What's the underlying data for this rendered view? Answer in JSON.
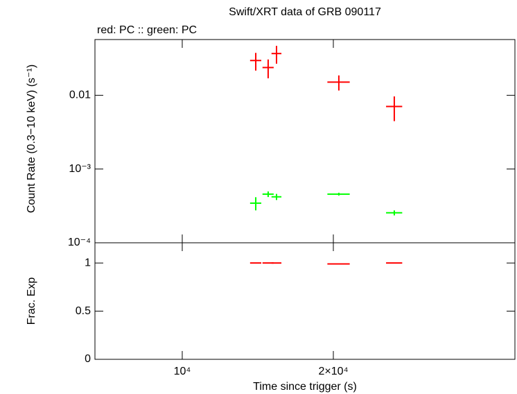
{
  "chart_data": [
    {
      "type": "scatter",
      "title": "Swift/XRT data of GRB 090117",
      "subtitle": "red: PC  :: green: PC",
      "ylabel": "Count Rate (0.3−10 keV) (s⁻¹)",
      "logx": true,
      "logy": true,
      "xlim": [
        6700,
        46000
      ],
      "ylim": [
        0.0001,
        0.057
      ],
      "yticks": [
        {
          "value": 0.0001,
          "label": "10⁻⁴"
        },
        {
          "value": 0.001,
          "label": "10⁻³"
        },
        0.01
      ],
      "series": [
        {
          "color": "#ff0000",
          "x": [
            14010,
            14830,
            15410,
            20510,
            26450
          ],
          "xerr": [
            360,
            380,
            350,
            1050,
            980
          ],
          "values": [
            0.0296,
            0.0238,
            0.0368,
            0.0151,
            0.00706
          ],
          "yerr": [
            0.008,
            0.0068,
            0.01,
            0.0035,
            0.0026
          ]
        },
        {
          "color": "#00ff00",
          "x": [
            14010,
            14830,
            15410,
            20510,
            26450
          ],
          "xerr": [
            360,
            380,
            350,
            1050,
            980
          ],
          "values": [
            0.000345,
            0.000457,
            0.00042,
            0.000457,
            0.000255
          ],
          "yerr": [
            7e-05,
            4e-05,
            4e-05,
            2e-05,
            2e-05
          ]
        }
      ]
    },
    {
      "type": "scatter",
      "xlabel": "Time since trigger (s)",
      "ylabel": "Frac. Exp",
      "logx": true,
      "logy": false,
      "xlim": [
        6700,
        46000
      ],
      "ylim": [
        0,
        1.21
      ],
      "xticks": [
        {
          "value": 10000,
          "label": "10⁴"
        },
        {
          "value": 20000,
          "label": "2×10⁴"
        }
      ],
      "yticks": [
        0,
        0.5,
        1
      ],
      "series": [
        {
          "color": "#ff0000",
          "x": [
            14010,
            14830,
            15410,
            20510,
            26450
          ],
          "xerr": [
            360,
            380,
            350,
            1050,
            980
          ],
          "values": [
            1,
            1,
            1,
            0.99,
            1
          ]
        }
      ]
    }
  ]
}
